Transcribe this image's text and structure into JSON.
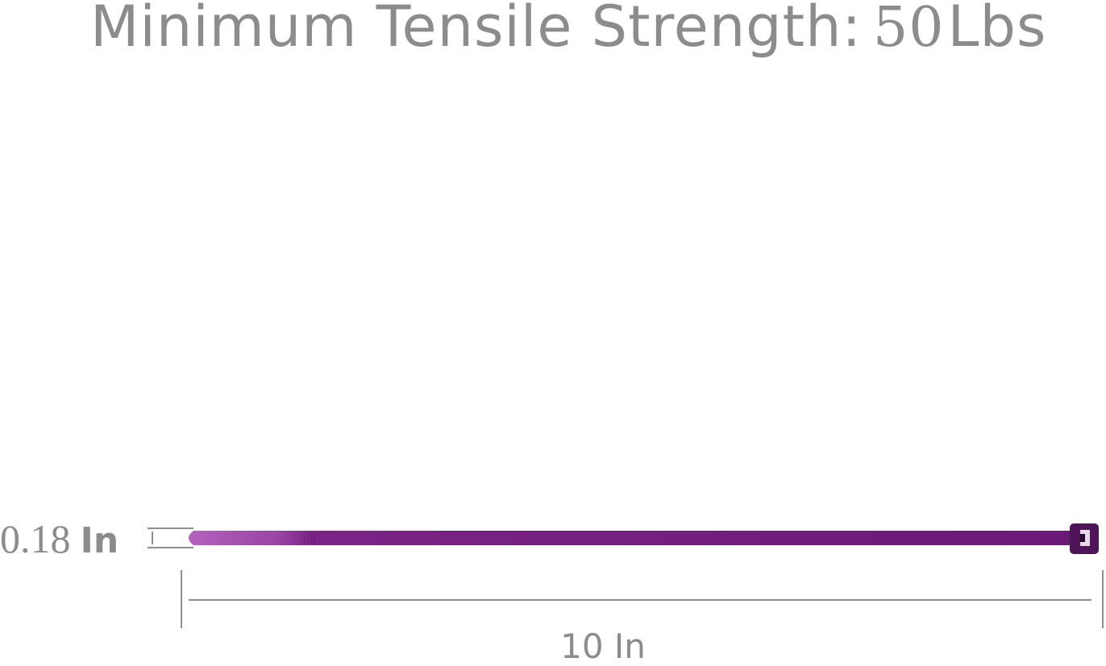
{
  "title": {
    "label": "Minimum Tensile Strength:",
    "value": "50",
    "unit": "Lbs"
  },
  "dimensions": {
    "width": {
      "value": "0.18",
      "unit": "In"
    },
    "length": {
      "label": "10 In"
    }
  },
  "colors": {
    "text": "#8c8c8c",
    "tie": "#6e1c7a",
    "tie_tail": "#b262bc",
    "head": "#4e1658",
    "dimension_lines": "#8f8f8f"
  }
}
